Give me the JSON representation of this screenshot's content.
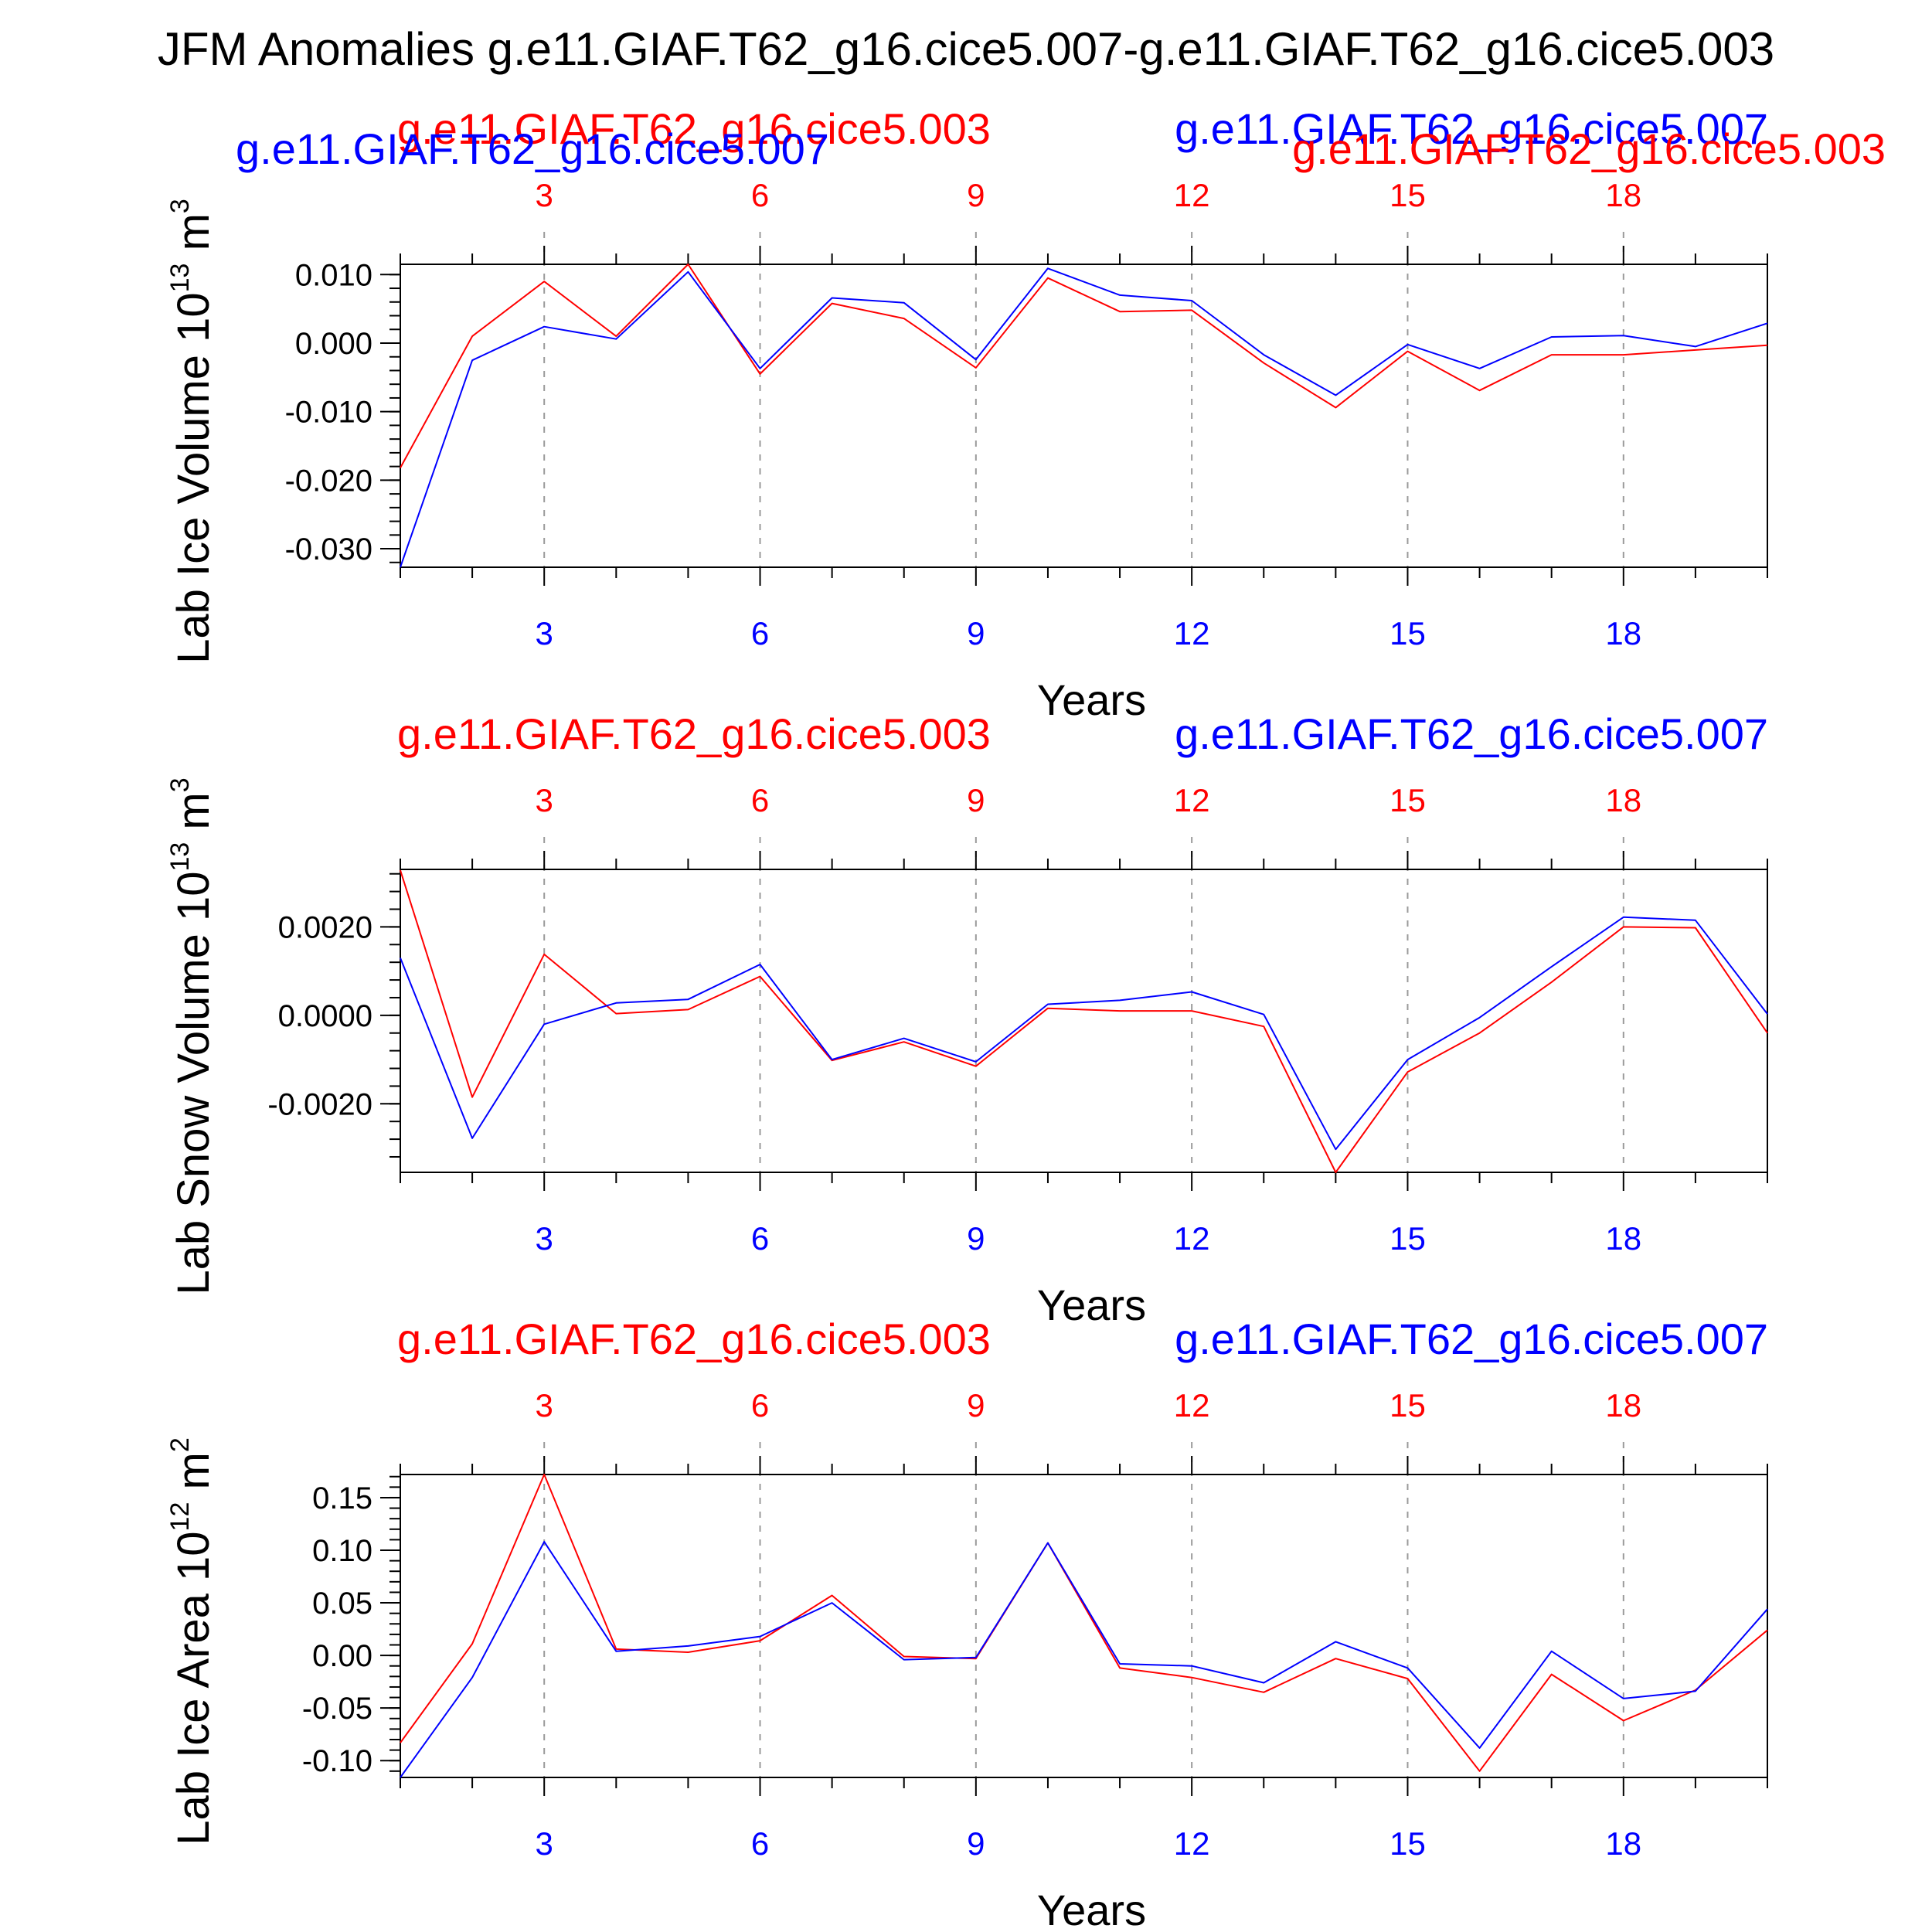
{
  "figure": {
    "title": "JFM Anomalies g.e11.GIAF.T62_g16.cice5.007-g.e11.GIAF.T62_g16.cice5.003",
    "colors": {
      "red": "#ff0000",
      "blue": "#0000ff",
      "axis": "#000000",
      "grid": "#9a9a9a"
    }
  },
  "chart_data": [
    {
      "type": "line",
      "ylabel": "Lab Ice Volume 10",
      "ylabel_exp": "13",
      "ylabel_unit": " m",
      "ylabel_unit_exp": "3",
      "xlabel": "Years",
      "xlim": [
        1,
        20
      ],
      "ylim": [
        -0.0327,
        0.0115
      ],
      "y_ticks": [
        -0.03,
        -0.02,
        -0.01,
        0.0,
        0.01
      ],
      "y_tick_labels": [
        "-0.030",
        "-0.020",
        "-0.010",
        "0.000",
        "0.010"
      ],
      "y_minor_step": 0.002,
      "x_ticks": [
        3,
        6,
        9,
        12,
        15,
        18
      ],
      "x_tick_labels": [
        "3",
        "6",
        "9",
        "12",
        "15",
        "18"
      ],
      "grid_x": true,
      "legend_top": [
        {
          "name": "g.e11.GIAF.T62_g16.cice5.003",
          "color": "red",
          "placement": "top-left"
        },
        {
          "name": "g.e11.GIAF.T62_g16.cice5.007",
          "color": "blue",
          "placement": "top-right"
        },
        {
          "name": "g.e11.GIAF.T62_g16.cice5.007",
          "color": "blue",
          "placement": "top-left-low"
        },
        {
          "name": "g.e11.GIAF.T62_g16.cice5.003",
          "color": "red",
          "placement": "top-right-low"
        }
      ],
      "series": [
        {
          "name": "g.e11.GIAF.T62_g16.cice5.003",
          "color": "red",
          "x": [
            1,
            2,
            3,
            4,
            5,
            6,
            7,
            8,
            9,
            10,
            11,
            12,
            13,
            14,
            15,
            16,
            17,
            18,
            19,
            20
          ],
          "values": [
            -0.0182,
            0.001,
            0.009,
            0.001,
            0.0115,
            -0.0045,
            0.0058,
            0.0036,
            -0.0036,
            0.0095,
            0.0046,
            0.0048,
            -0.0029,
            -0.0094,
            -0.0012,
            -0.0069,
            -0.0017,
            -0.0017,
            -0.001,
            -0.0003
          ]
        },
        {
          "name": "g.e11.GIAF.T62_g16.cice5.007",
          "color": "blue",
          "x": [
            1,
            2,
            3,
            4,
            5,
            6,
            7,
            8,
            9,
            10,
            11,
            12,
            13,
            14,
            15,
            16,
            17,
            18,
            19,
            20
          ],
          "values": [
            -0.0327,
            -0.0025,
            0.0024,
            0.0006,
            0.0104,
            -0.0037,
            0.0066,
            0.0059,
            -0.0024,
            0.0109,
            0.007,
            0.0062,
            -0.0017,
            -0.0076,
            -0.0002,
            -0.0037,
            0.0009,
            0.0011,
            -0.0005,
            0.0029
          ]
        }
      ]
    },
    {
      "type": "line",
      "ylabel": "Lab Snow Volume 10",
      "ylabel_exp": "13",
      "ylabel_unit": " m",
      "ylabel_unit_exp": "3",
      "xlabel": "Years",
      "xlim": [
        1,
        20
      ],
      "ylim": [
        -0.00355,
        0.0033
      ],
      "y_ticks": [
        -0.002,
        0.0,
        0.002
      ],
      "y_tick_labels": [
        "-0.0020",
        "0.0000",
        "0.0020"
      ],
      "y_minor_step": 0.0004,
      "x_ticks": [
        3,
        6,
        9,
        12,
        15,
        18
      ],
      "x_tick_labels": [
        "3",
        "6",
        "9",
        "12",
        "15",
        "18"
      ],
      "grid_x": true,
      "legend_top": [
        {
          "name": "g.e11.GIAF.T62_g16.cice5.003",
          "color": "red",
          "placement": "top-left"
        },
        {
          "name": "g.e11.GIAF.T62_g16.cice5.007",
          "color": "blue",
          "placement": "top-right"
        }
      ],
      "series": [
        {
          "name": "g.e11.GIAF.T62_g16.cice5.003",
          "color": "red",
          "x": [
            1,
            2,
            3,
            4,
            5,
            6,
            7,
            8,
            9,
            10,
            11,
            12,
            13,
            14,
            15,
            16,
            17,
            18,
            19,
            20
          ],
          "values": [
            0.00328,
            -0.00185,
            0.00138,
            4e-05,
            0.00013,
            0.00088,
            -0.00102,
            -0.0006,
            -0.00115,
            0.00016,
            0.0001,
            0.0001,
            -0.00025,
            -0.00355,
            -0.00128,
            -0.0004,
            0.00075,
            0.002,
            0.00198,
            -0.0004
          ]
        },
        {
          "name": "g.e11.GIAF.T62_g16.cice5.007",
          "color": "blue",
          "x": [
            1,
            2,
            3,
            4,
            5,
            6,
            7,
            8,
            9,
            10,
            11,
            12,
            13,
            14,
            15,
            16,
            17,
            18,
            19,
            20
          ],
          "values": [
            0.0013,
            -0.00278,
            -0.0002,
            0.00028,
            0.00036,
            0.00115,
            -0.001,
            -0.00052,
            -0.00105,
            0.00025,
            0.00034,
            0.00053,
            2e-05,
            -0.00303,
            -0.001,
            -5e-05,
            0.0011,
            0.00222,
            0.00215,
            3e-05
          ]
        }
      ]
    },
    {
      "type": "line",
      "ylabel": "Lab Ice Area 10",
      "ylabel_exp": "12",
      "ylabel_unit": " m",
      "ylabel_unit_exp": "2",
      "xlabel": "Years",
      "xlim": [
        1,
        20
      ],
      "ylim": [
        -0.116,
        0.172
      ],
      "y_ticks": [
        -0.1,
        -0.05,
        0.0,
        0.05,
        0.1,
        0.15
      ],
      "y_tick_labels": [
        "-0.10",
        "-0.05",
        "0.00",
        "0.05",
        "0.10",
        "0.15"
      ],
      "y_minor_step": 0.01,
      "x_ticks": [
        3,
        6,
        9,
        12,
        15,
        18
      ],
      "x_tick_labels": [
        "3",
        "6",
        "9",
        "12",
        "15",
        "18"
      ],
      "grid_x": true,
      "legend_top": [
        {
          "name": "g.e11.GIAF.T62_g16.cice5.003",
          "color": "red",
          "placement": "top-left"
        },
        {
          "name": "g.e11.GIAF.T62_g16.cice5.007",
          "color": "blue",
          "placement": "top-right"
        }
      ],
      "series": [
        {
          "name": "g.e11.GIAF.T62_g16.cice5.003",
          "color": "red",
          "x": [
            1,
            2,
            3,
            4,
            5,
            6,
            7,
            8,
            9,
            10,
            11,
            12,
            13,
            14,
            15,
            16,
            17,
            18,
            19,
            20
          ],
          "values": [
            -0.083,
            0.011,
            0.172,
            0.006,
            0.003,
            0.014,
            0.057,
            -0.001,
            -0.003,
            0.107,
            -0.012,
            -0.021,
            -0.035,
            -0.003,
            -0.022,
            -0.11,
            -0.018,
            -0.062,
            -0.033,
            0.024
          ]
        },
        {
          "name": "g.e11.GIAF.T62_g16.cice5.007",
          "color": "blue",
          "x": [
            1,
            2,
            3,
            4,
            5,
            6,
            7,
            8,
            9,
            10,
            11,
            12,
            13,
            14,
            15,
            16,
            17,
            18,
            19,
            20
          ],
          "values": [
            -0.116,
            -0.021,
            0.108,
            0.004,
            0.009,
            0.018,
            0.05,
            -0.004,
            -0.002,
            0.107,
            -0.008,
            -0.01,
            -0.026,
            0.013,
            -0.012,
            -0.088,
            0.004,
            -0.041,
            -0.034,
            0.044
          ]
        }
      ]
    }
  ]
}
